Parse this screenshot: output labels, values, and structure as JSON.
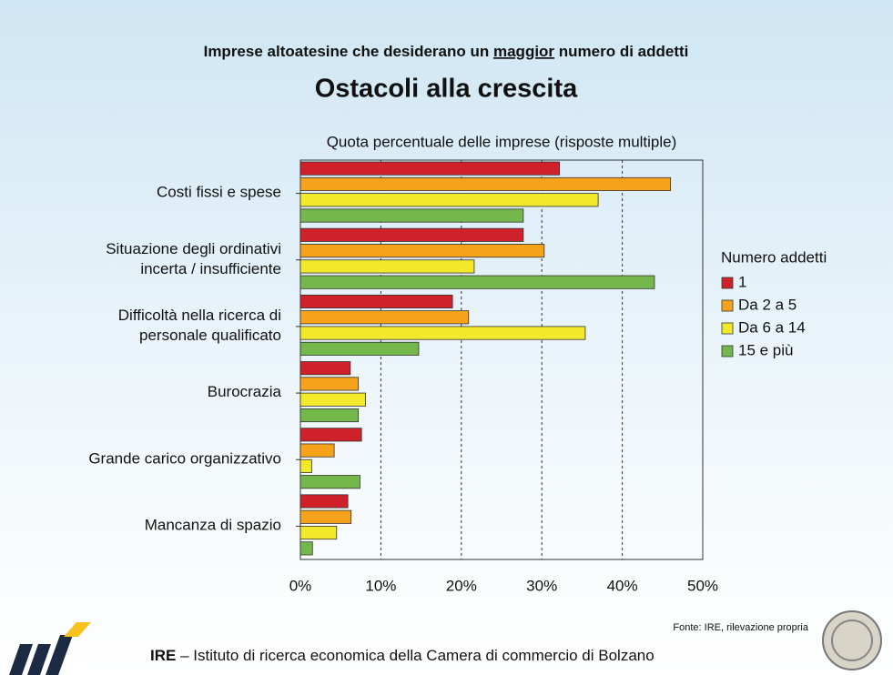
{
  "chart_data": {
    "type": "bar",
    "orientation": "horizontal",
    "subtitle_parts": [
      "Imprese altoatesine che desiderano un ",
      "maggior",
      " numero di addetti"
    ],
    "title": "Ostacoli alla crescita",
    "x_label": "Quota percentuale delle imprese (risposte multiple)",
    "categories": [
      "Costi fissi e spese",
      "Situazione degli ordinativi\nincerta / insufficiente",
      "Difficoltà nella ricerca di\npersonale qualificato",
      "Burocrazia",
      "Grande carico organizzativo",
      "Mancanza di spazio"
    ],
    "series": [
      {
        "name": "1",
        "color": "#d0202a",
        "values": [
          32.2,
          27.7,
          18.9,
          6.2,
          7.6,
          5.9
        ]
      },
      {
        "name": "Da 2 a 5",
        "color": "#f7a21b",
        "values": [
          46,
          30.3,
          20.9,
          7.2,
          4.2,
          6.3
        ]
      },
      {
        "name": "Da 6 a 14",
        "color": "#f2e92a",
        "values": [
          37,
          21.6,
          35.4,
          8.1,
          1.4,
          4.5
        ]
      },
      {
        "name": "15 e più",
        "color": "#74b84b",
        "values": [
          27.7,
          44,
          14.7,
          7.2,
          7.4,
          1.5
        ]
      }
    ],
    "xlim": [
      0,
      50
    ],
    "xticks": [
      {
        "value": 0,
        "label": "0%"
      },
      {
        "value": 10,
        "label": "10%"
      },
      {
        "value": 20,
        "label": "20%"
      },
      {
        "value": 30,
        "label": "30%"
      },
      {
        "value": 40,
        "label": "40%"
      },
      {
        "value": 50,
        "label": "50%"
      }
    ],
    "grid": true,
    "legend_title": "Numero addetti",
    "legend_position": "right",
    "source": "Fonte: IRE, rilevazione propria",
    "footer_bold": "IRE",
    "footer_text": " – Istituto di ricerca economica della Camera di commercio di Bolzano"
  }
}
